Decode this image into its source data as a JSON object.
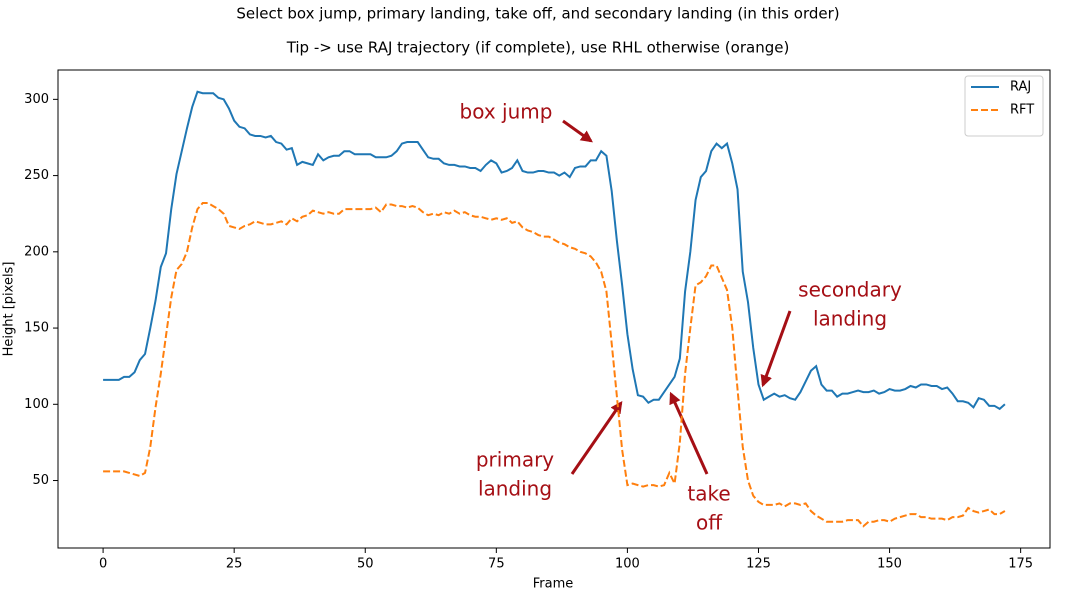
{
  "chart_data": {
    "type": "line",
    "title": "Select box jump, primary landing, take off, and secondary landing (in this order)",
    "subtitle": "Tip -> use RAJ trajectory (if complete), use RHL otherwise (orange)",
    "x_label": "Frame",
    "y_label": "Height [pixels]",
    "x": [
      0,
      1,
      2,
      3,
      4,
      5,
      6,
      7,
      8,
      9,
      10,
      11,
      12,
      13,
      14,
      15,
      16,
      17,
      18,
      19,
      20,
      21,
      22,
      23,
      24,
      25,
      26,
      27,
      28,
      29,
      30,
      31,
      32,
      33,
      34,
      35,
      36,
      37,
      38,
      39,
      40,
      41,
      42,
      43,
      44,
      45,
      46,
      47,
      48,
      49,
      50,
      51,
      52,
      53,
      54,
      55,
      56,
      57,
      58,
      59,
      60,
      61,
      62,
      63,
      64,
      65,
      66,
      67,
      68,
      69,
      70,
      71,
      72,
      73,
      74,
      75,
      76,
      77,
      78,
      79,
      80,
      81,
      82,
      83,
      84,
      85,
      86,
      87,
      88,
      89,
      90,
      91,
      92,
      93,
      94,
      95,
      96,
      97,
      98,
      99,
      100,
      101,
      102,
      103,
      104,
      105,
      106,
      107,
      108,
      109,
      110,
      111,
      112,
      113,
      114,
      115,
      116,
      117,
      118,
      119,
      120,
      121,
      122,
      123,
      124,
      125,
      126,
      127,
      128,
      129,
      130,
      131,
      132,
      133,
      134,
      135,
      136,
      137,
      138,
      139,
      140,
      141,
      142,
      143,
      144,
      145,
      146,
      147,
      148,
      149,
      150,
      151,
      152,
      153,
      154,
      155,
      156,
      157,
      158,
      159,
      160,
      161,
      162,
      163,
      164,
      165,
      166,
      167,
      168,
      169,
      170,
      171,
      172
    ],
    "series": [
      {
        "name": "RAJ",
        "color": "#1f77b4",
        "dash": false,
        "values": [
          116,
          116,
          116,
          116,
          118,
          118,
          121,
          129,
          133,
          150,
          168,
          190,
          199,
          228,
          251,
          266,
          281,
          295,
          305,
          304,
          304,
          304,
          301,
          300,
          294,
          286,
          282,
          281,
          277,
          276,
          276,
          275,
          276,
          272,
          271,
          267,
          268,
          257,
          259,
          258,
          257,
          264,
          260,
          262,
          263,
          263,
          266,
          266,
          264,
          264,
          264,
          264,
          262,
          262,
          262,
          263,
          266,
          271,
          272,
          272,
          272,
          267,
          262,
          261,
          261,
          258,
          257,
          257,
          256,
          256,
          255,
          255,
          253,
          257,
          260,
          258,
          252,
          253,
          255,
          260,
          253,
          252,
          252,
          253,
          253,
          252,
          252,
          250,
          252,
          249,
          255,
          256,
          256,
          260,
          260,
          266,
          263,
          240,
          207,
          178,
          146,
          123,
          106,
          105,
          101,
          103,
          103,
          108,
          113,
          118,
          130,
          174,
          200,
          234,
          249,
          253,
          266,
          271,
          268,
          271,
          258,
          241,
          187,
          167,
          137,
          113,
          103,
          105,
          107,
          105,
          106,
          104,
          103,
          108,
          115,
          122,
          125,
          113,
          109,
          109,
          105,
          107,
          107,
          108,
          109,
          108,
          108,
          109,
          107,
          108,
          110,
          109,
          109,
          110,
          112,
          111,
          113,
          113,
          112,
          112,
          110,
          111,
          107,
          102,
          102,
          101,
          98,
          104,
          103,
          99,
          99,
          97,
          100
        ]
      },
      {
        "name": "RFT",
        "color": "#ff7f0e",
        "dash": true,
        "values": [
          56,
          56,
          56,
          56,
          56,
          55,
          54,
          53,
          55,
          72,
          98,
          120,
          145,
          170,
          188,
          192,
          200,
          216,
          228,
          232,
          232,
          230,
          228,
          225,
          217,
          216,
          215,
          217,
          218,
          220,
          219,
          218,
          218,
          219,
          220,
          218,
          222,
          220,
          223,
          224,
          227,
          226,
          225,
          226,
          225,
          225,
          228,
          228,
          228,
          228,
          228,
          228,
          229,
          226,
          231,
          231,
          230,
          230,
          229,
          230,
          229,
          226,
          224,
          225,
          224,
          226,
          225,
          227,
          225,
          226,
          224,
          223,
          223,
          222,
          221,
          222,
          221,
          222,
          219,
          220,
          216,
          214,
          213,
          211,
          210,
          210,
          208,
          206,
          205,
          203,
          202,
          200,
          199,
          197,
          193,
          187,
          174,
          140,
          105,
          70,
          47,
          48,
          47,
          46,
          47,
          47,
          46,
          47,
          55,
          48,
          75,
          120,
          150,
          178,
          180,
          184,
          191,
          191,
          183,
          175,
          150,
          110,
          72,
          50,
          40,
          36,
          34,
          34,
          34,
          35,
          33,
          35,
          35,
          34,
          35,
          30,
          27,
          25,
          23,
          23,
          23,
          23,
          24,
          24,
          24,
          20,
          23,
          23,
          24,
          24,
          23,
          25,
          26,
          27,
          28,
          28,
          26,
          26,
          25,
          25,
          25,
          24,
          26,
          26,
          27,
          32,
          30,
          29,
          30,
          31,
          28,
          28,
          30
        ]
      }
    ],
    "xlim": [
      -8.6,
      180.6
    ],
    "xticks": [
      0,
      25,
      50,
      75,
      100,
      125,
      150,
      175
    ],
    "ylim": [
      5.75,
      319.25
    ],
    "yticks": [
      50,
      100,
      150,
      200,
      250,
      300
    ],
    "legend": "upper right",
    "annotations": [
      {
        "lines": [
          "box jump"
        ]
      },
      {
        "lines": [
          "primary",
          "landing"
        ]
      },
      {
        "lines": [
          "take",
          "off"
        ]
      },
      {
        "lines": [
          "secondary",
          "landing"
        ]
      }
    ]
  }
}
